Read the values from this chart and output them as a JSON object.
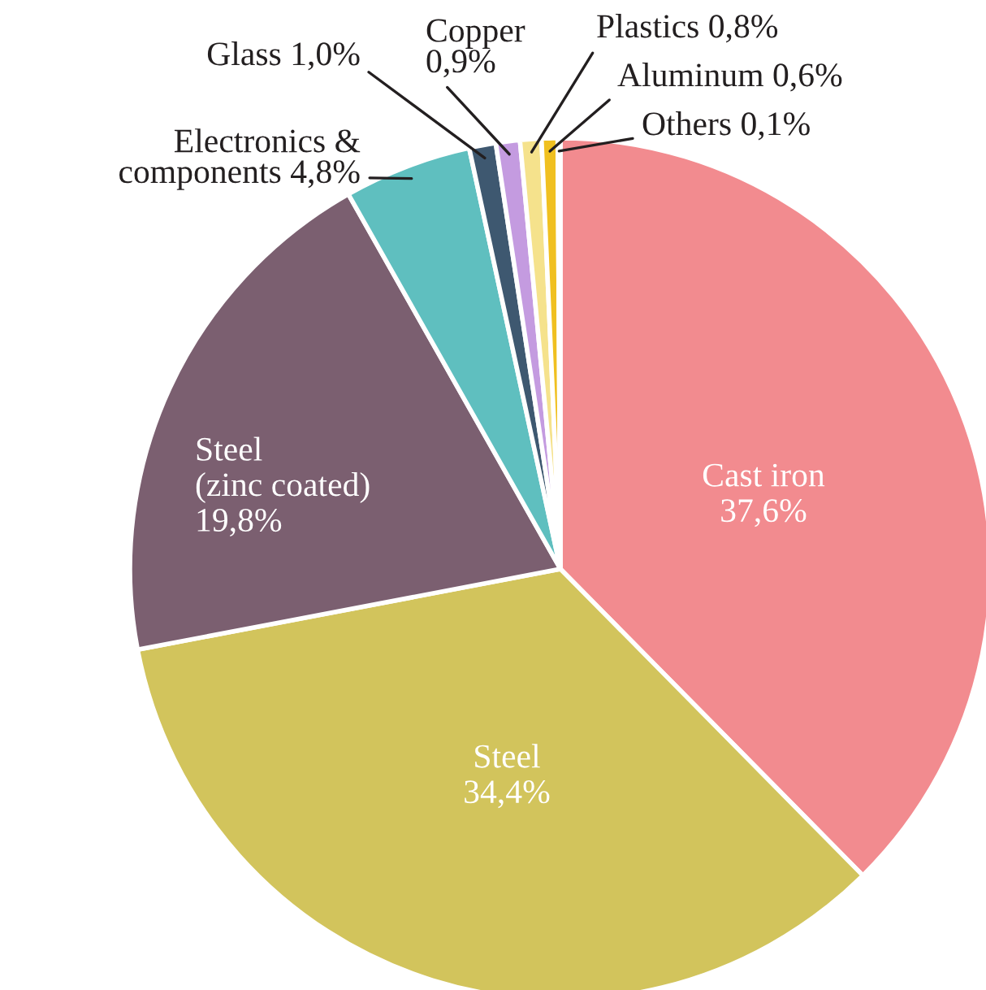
{
  "chart_data": {
    "type": "pie",
    "categories": [
      "Cast iron",
      "Steel",
      "Steel (zinc coated)",
      "Electronics & components",
      "Glass",
      "Copper",
      "Plastics",
      "Aluminum",
      "Others"
    ],
    "values": [
      37.6,
      34.4,
      19.8,
      4.8,
      1.0,
      0.9,
      0.8,
      0.6,
      0.1
    ],
    "value_labels": [
      "37,6%",
      "34,4%",
      "19,8%",
      "4,8%",
      "1,0%",
      "0,9%",
      "0,8%",
      "0,6%",
      "0,1%"
    ],
    "colors": [
      "#f28b8f",
      "#d2c45c",
      "#7b5f70",
      "#5fbfbf",
      "#3e5870",
      "#c49be0",
      "#f5e28c",
      "#f0c020",
      "#2a54a8"
    ],
    "legend": false
  }
}
